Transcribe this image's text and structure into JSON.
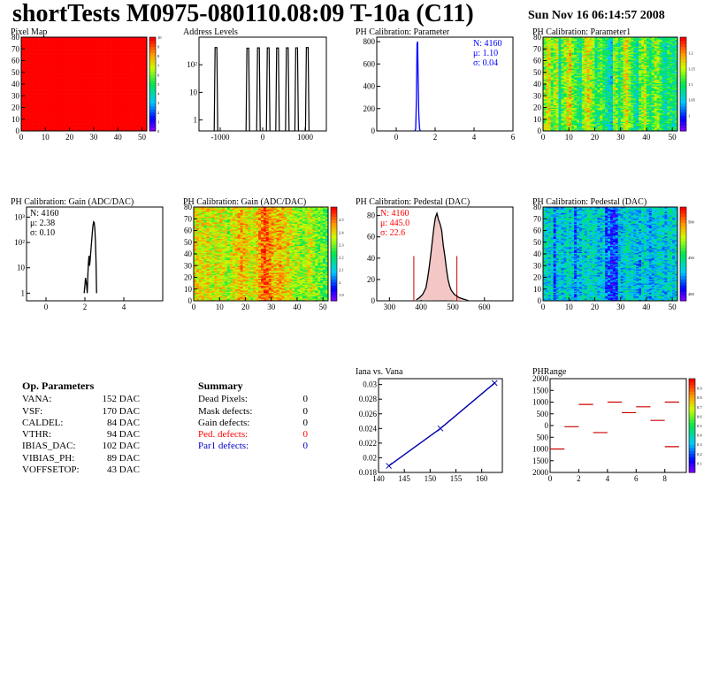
{
  "title": "shortTests M0975-080110.08:09 T-10a (C11)",
  "datetime": "Sun Nov 16 06:14:57 2008",
  "op_params": {
    "heading": "Op. Parameters",
    "rows": [
      {
        "label": "VANA:",
        "value": "152 DAC"
      },
      {
        "label": "VSF:",
        "value": "170 DAC"
      },
      {
        "label": "CALDEL:",
        "value": "84 DAC"
      },
      {
        "label": "VTHR:",
        "value": "94 DAC"
      },
      {
        "label": "IBIAS_DAC:",
        "value": "102 DAC"
      },
      {
        "label": "VIBIAS_PH:",
        "value": "89 DAC"
      },
      {
        "label": "VOFFSETOP:",
        "value": "43 DAC"
      }
    ]
  },
  "summary": {
    "heading": "Summary",
    "rows": [
      {
        "label": "Dead Pixels:",
        "value": "0",
        "color": "#000000"
      },
      {
        "label": "Mask defects:",
        "value": "0",
        "color": "#000000"
      },
      {
        "label": "Gain defects:",
        "value": "0",
        "color": "#000000"
      },
      {
        "label": "Ped. defects:",
        "value": "0",
        "color": "#ff0000"
      },
      {
        "label": "Par1 defects:",
        "value": "0",
        "color": "#0000cc"
      }
    ]
  },
  "chart_data": [
    {
      "id": "pixel-map",
      "type": "heatmap",
      "title": "Pixel Map",
      "xlim": [
        0,
        52
      ],
      "ylim": [
        0,
        80
      ],
      "xticks": [
        0,
        10,
        20,
        30,
        40,
        50
      ],
      "yticks": [
        0,
        10,
        20,
        30,
        40,
        50,
        60,
        70,
        80
      ],
      "value": 10,
      "zlim": [
        0,
        10
      ],
      "colorbar_ticks": [
        0,
        1,
        2,
        3,
        4,
        5,
        6,
        7,
        8,
        9,
        10
      ]
    },
    {
      "id": "address-levels",
      "type": "bar",
      "title": "Address Levels",
      "log_y": true,
      "xlim": [
        -1500,
        1500
      ],
      "ylim": [
        0.4,
        1000
      ],
      "xticks": [
        -1000,
        0,
        1000
      ],
      "ytick_labels": [
        {
          "v": 1,
          "t": "1"
        },
        {
          "v": 10,
          "t": "10"
        },
        {
          "v": 100,
          "t": "10²"
        }
      ],
      "peaks": [
        {
          "x": -1100,
          "h": 420
        },
        {
          "x": -350,
          "h": 400
        },
        {
          "x": -100,
          "h": 410
        },
        {
          "x": 130,
          "h": 410
        },
        {
          "x": 350,
          "h": 405
        },
        {
          "x": 580,
          "h": 410
        },
        {
          "x": 800,
          "h": 410
        },
        {
          "x": 1050,
          "h": 420
        }
      ]
    },
    {
      "id": "ph-parameter",
      "type": "line",
      "title": "PH Calibration: Parameter",
      "xlim": [
        -1,
        6
      ],
      "ylim": [
        0,
        840
      ],
      "xticks": [
        0,
        2,
        4,
        6
      ],
      "yticks": [
        0,
        200,
        400,
        600,
        800
      ],
      "stats": [
        "N: 4160",
        "μ: 1.10",
        "σ: 0.04"
      ],
      "stats_color": "#0000ff",
      "x": [
        0.96,
        1.0,
        1.04,
        1.07,
        1.1,
        1.13,
        1.16,
        1.2,
        1.24
      ],
      "y": [
        0,
        20,
        300,
        780,
        800,
        450,
        150,
        20,
        0
      ]
    },
    {
      "id": "ph-parameter1",
      "type": "heatmap",
      "title": "PH Calibration: Parameter1",
      "xlim": [
        0,
        52
      ],
      "ylim": [
        0,
        80
      ],
      "xticks": [
        0,
        10,
        20,
        30,
        40,
        50
      ],
      "yticks": [
        0,
        10,
        20,
        30,
        40,
        50,
        60,
        70,
        80
      ],
      "zlim": [
        0.95,
        1.25
      ],
      "colorbar_ticks": [
        1.0,
        1.05,
        1.1,
        1.15,
        1.2
      ],
      "column_means": [
        0.62,
        0.7,
        0.72,
        0.55,
        0.6,
        0.66,
        0.4,
        0.58,
        0.62,
        0.7,
        0.75,
        0.6,
        0.55,
        0.5,
        0.45,
        0.62,
        0.68,
        0.72,
        0.66,
        0.6,
        0.48,
        0.52,
        0.58,
        0.5,
        0.45,
        0.4,
        0.35,
        0.65,
        0.6,
        0.48,
        0.55,
        0.68,
        0.72,
        0.6,
        0.52,
        0.45,
        0.4,
        0.58,
        0.62,
        0.66,
        0.52,
        0.48,
        0.55,
        0.62,
        0.6,
        0.52,
        0.45,
        0.4,
        0.5,
        0.46,
        0.44,
        0.48
      ]
    },
    {
      "id": "ph-gain",
      "type": "line",
      "title": "PH Calibration: Gain (ADC/DAC)",
      "log_y": true,
      "xlim": [
        -1,
        6
      ],
      "ylim": [
        0.5,
        2500
      ],
      "xticks": [
        0,
        2,
        4
      ],
      "ytick_labels": [
        {
          "v": 1,
          "t": "1"
        },
        {
          "v": 10,
          "t": "10"
        },
        {
          "v": 100,
          "t": "10²"
        },
        {
          "v": 1000,
          "t": "10³"
        }
      ],
      "stats": [
        "N: 4160",
        "μ: 2.38",
        "σ: 0.10"
      ],
      "stats_color": "#000000",
      "x": [
        1.96,
        2.0,
        2.03,
        2.06,
        2.09,
        2.12,
        2.15,
        2.18,
        2.21,
        2.24,
        2.27,
        2.3,
        2.33,
        2.36,
        2.39,
        2.42,
        2.45,
        2.48,
        2.51,
        2.54,
        2.57,
        2.6
      ],
      "y": [
        1,
        2,
        4,
        3,
        2,
        1,
        5,
        15,
        30,
        12,
        20,
        40,
        80,
        150,
        300,
        500,
        650,
        600,
        350,
        120,
        20,
        1
      ]
    },
    {
      "id": "ph-gain-map",
      "type": "heatmap",
      "title": "PH Calibration: Gain (ADC/DAC)",
      "xlim": [
        0,
        52
      ],
      "ylim": [
        0,
        80
      ],
      "xticks": [
        0,
        10,
        20,
        30,
        40,
        50
      ],
      "yticks": [
        0,
        10,
        20,
        30,
        40,
        50,
        60,
        70,
        80
      ],
      "zlim": [
        1.85,
        2.6
      ],
      "colorbar_ticks": [
        1.9,
        2.0,
        2.1,
        2.2,
        2.3,
        2.4,
        2.5
      ],
      "column_means": [
        0.72,
        0.75,
        0.7,
        0.72,
        0.68,
        0.74,
        0.7,
        0.66,
        0.72,
        0.68,
        0.72,
        0.7,
        0.66,
        0.62,
        0.68,
        0.74,
        0.72,
        0.78,
        0.8,
        0.76,
        0.72,
        0.7,
        0.68,
        0.72,
        0.74,
        0.8,
        0.86,
        0.92,
        0.88,
        0.84,
        0.8,
        0.76,
        0.78,
        0.8,
        0.76,
        0.72,
        0.74,
        0.7,
        0.66,
        0.64,
        0.66,
        0.62,
        0.6,
        0.64,
        0.68,
        0.7,
        0.64,
        0.6,
        0.6,
        0.58,
        0.56,
        0.55
      ]
    },
    {
      "id": "ph-pedestal",
      "type": "line",
      "title": "PH Calibration: Pedestal (DAC)",
      "xlim": [
        260,
        690
      ],
      "ylim": [
        0,
        88
      ],
      "xticks": [
        300,
        400,
        500,
        600
      ],
      "yticks": [
        0,
        20,
        40,
        60,
        80
      ],
      "stats": [
        "N: 4160",
        "μ: 445.0",
        "σ: 22.6"
      ],
      "stats_color": "#ff0000",
      "cut_lines": [
        {
          "x": 377,
          "y": 42
        },
        {
          "x": 513,
          "y": 42
        }
      ],
      "x": [
        385,
        395,
        405,
        415,
        420,
        425,
        430,
        435,
        440,
        445,
        450,
        455,
        460,
        465,
        470,
        475,
        480,
        485,
        490,
        495,
        500,
        505,
        510,
        520,
        530,
        540,
        550
      ],
      "y": [
        1,
        3,
        6,
        12,
        20,
        30,
        42,
        55,
        68,
        78,
        82,
        76,
        72,
        66,
        52,
        42,
        30,
        20,
        14,
        10,
        8,
        6,
        5,
        3,
        2,
        1,
        0
      ]
    },
    {
      "id": "ph-pedestal-map",
      "type": "heatmap",
      "title": "PH Calibration: Pedestal (DAC)",
      "xlim": [
        0,
        52
      ],
      "ylim": [
        0,
        80
      ],
      "xticks": [
        0,
        10,
        20,
        30,
        40,
        50
      ],
      "yticks": [
        0,
        10,
        20,
        30,
        40,
        50,
        60,
        70,
        80
      ],
      "zlim": [
        390,
        520
      ],
      "colorbar_ticks": [
        400,
        450,
        500
      ],
      "column_means": [
        0.38,
        0.36,
        0.34,
        0.38,
        0.2,
        0.32,
        0.36,
        0.3,
        0.34,
        0.38,
        0.34,
        0.36,
        0.2,
        0.32,
        0.3,
        0.36,
        0.34,
        0.4,
        0.36,
        0.38,
        0.36,
        0.3,
        0.34,
        0.36,
        0.2,
        0.22,
        0.16,
        0.14,
        0.18,
        0.32,
        0.3,
        0.36,
        0.4,
        0.34,
        0.36,
        0.32,
        0.3,
        0.28,
        0.34,
        0.36,
        0.32,
        0.28,
        0.3,
        0.34,
        0.36,
        0.38,
        0.34,
        0.3,
        0.36,
        0.38,
        0.34,
        0.36
      ]
    },
    {
      "id": "iana-vana",
      "type": "line",
      "title": "Iana vs. Vana",
      "xlim": [
        140,
        164
      ],
      "ylim": [
        0.018,
        0.0308
      ],
      "xticks": [
        140,
        145,
        150,
        155,
        160
      ],
      "yticks": [
        0.018,
        0.02,
        0.022,
        0.024,
        0.026,
        0.028,
        0.03
      ],
      "ytick_labels": [
        "0.018",
        "0.02",
        "0.022",
        "0.024",
        "0.026",
        "0.028",
        "0.03"
      ],
      "x": [
        142,
        152,
        162.5
      ],
      "y": [
        0.0189,
        0.024,
        0.0302
      ]
    },
    {
      "id": "ph-range",
      "type": "scatter",
      "title": "PHRange",
      "xlim": [
        0,
        9.5
      ],
      "ylim": [
        -2000,
        2000
      ],
      "xticks": [
        0,
        2,
        4,
        6,
        8
      ],
      "yticks": [
        -2000,
        -1500,
        -1000,
        -500,
        0,
        500,
        1000,
        1500,
        2000
      ],
      "ytick_labels": [
        "2000",
        "1500",
        "1000",
        "500",
        "0",
        "500",
        "1000",
        "1500",
        "2000"
      ],
      "zlim": [
        0,
        1
      ],
      "colorbar_ticks": [
        0.1,
        0.2,
        0.3,
        0.4,
        0.5,
        0.6,
        0.7,
        0.8,
        0.9
      ],
      "segments": [
        {
          "x": 0,
          "y": -1000
        },
        {
          "x": 1,
          "y": -50
        },
        {
          "x": 2,
          "y": 900
        },
        {
          "x": 3,
          "y": -300
        },
        {
          "x": 4,
          "y": 1000
        },
        {
          "x": 5,
          "y": 550
        },
        {
          "x": 6,
          "y": 800
        },
        {
          "x": 7,
          "y": 220
        },
        {
          "x": 8,
          "y": 1000
        },
        {
          "x": 8,
          "y": -900
        }
      ]
    }
  ]
}
